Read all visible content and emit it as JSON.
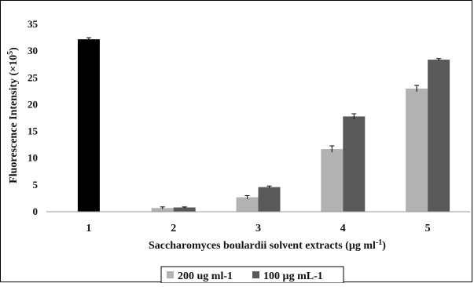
{
  "chart_data": {
    "type": "bar",
    "categories": [
      "1",
      "2",
      "3",
      "4",
      "5"
    ],
    "series": [
      {
        "name": "200 ug ml-1",
        "color": "#b3b3b3",
        "values": [
          null,
          0.7,
          2.7,
          11.7,
          23.0
        ],
        "errors": [
          null,
          0.2,
          0.3,
          0.6,
          0.6
        ]
      },
      {
        "name": "100 µg mL-1",
        "color": "#595959",
        "values": [
          32.2,
          0.8,
          4.6,
          17.8,
          28.4
        ],
        "errors": [
          0.3,
          0.1,
          0.2,
          0.5,
          0.2
        ]
      }
    ],
    "control_bar_color": "#000000",
    "ylim": [
      0,
      35
    ],
    "yticks": [
      "0",
      "5",
      "10",
      "15",
      "20",
      "25",
      "30",
      "35"
    ],
    "ylabel_main": "Fluorescence Intensity (×10",
    "ylabel_sup": "5",
    "ylabel_end": ")",
    "xlabel_main": "Saccharomyces boulardii solvent extracts (µg ml",
    "xlabel_sup": "-1",
    "xlabel_end": ")",
    "grid": false,
    "legend_position": "bottom"
  }
}
